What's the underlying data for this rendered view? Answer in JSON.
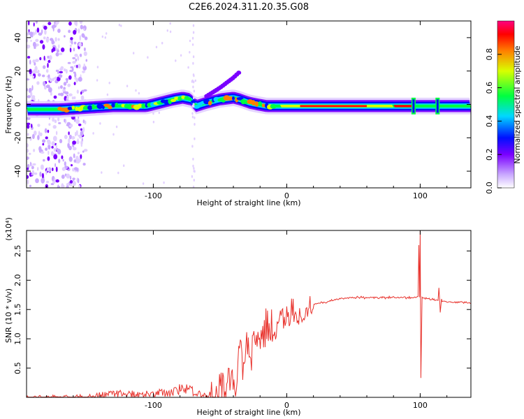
{
  "title": "C2E6.2024.311.20.35.G08",
  "chart_data": [
    {
      "type": "heatmap",
      "name": "spectrogram",
      "xlabel": "Height of straight line (km)",
      "ylabel": "Frequency (Hz)",
      "xlim": [
        -195,
        138
      ],
      "ylim": [
        -50,
        50
      ],
      "x_ticks": [
        -100,
        0,
        100
      ],
      "y_ticks": [
        -40,
        -20,
        0,
        20,
        40
      ],
      "colorbar": {
        "label": "Normalized spectral amplitude",
        "range": [
          0.0,
          1.0
        ],
        "ticks": [
          "0.0",
          "0.2",
          "0.4",
          "0.6",
          "0.8"
        ],
        "colors": [
          "#ffffff",
          "#c9a8ff",
          "#7a00ff",
          "#0010ff",
          "#00d8ff",
          "#00ff40",
          "#d8ff00",
          "#ff8000",
          "#ff0000",
          "#ff0080"
        ]
      },
      "ridge": {
        "x": [
          -195,
          -170,
          -150,
          -130,
          -115,
          -105,
          -95,
          -85,
          -78,
          -72,
          -68,
          -60,
          -50,
          -40,
          -35,
          -28,
          -22,
          -15,
          -5,
          0,
          10,
          20,
          40,
          60,
          80,
          90,
          95,
          100,
          110,
          120,
          138
        ],
        "y": [
          -3,
          -3,
          -2,
          -1,
          -1,
          -1,
          1,
          3,
          4,
          3,
          -1,
          1,
          3,
          4,
          3,
          1,
          0,
          -1,
          -1,
          -1,
          -1,
          -1,
          -1,
          -1,
          -1,
          -1,
          -1,
          -1,
          -1,
          -1,
          -1
        ]
      },
      "branch": {
        "x": [
          -60,
          -50,
          -45,
          -40,
          -36
        ],
        "y": [
          5,
          10,
          13,
          16,
          19
        ]
      },
      "spikes_x": [
        95,
        113
      ]
    },
    {
      "type": "line",
      "name": "snr",
      "xlabel": "Height of straight line (km)",
      "ylabel": "SNR (10 * v/v)",
      "y_multiplier": "(x10⁴)",
      "xlim": [
        -195,
        138
      ],
      "ylim": [
        0,
        2.85
      ],
      "x_ticks": [
        -100,
        0,
        100
      ],
      "y_ticks": [
        0.5,
        1.0,
        1.5,
        2.0,
        2.5
      ],
      "color": "#e8322c",
      "envelope": {
        "x": [
          -195,
          -150,
          -130,
          -100,
          -85,
          -75,
          -65,
          -55,
          -45,
          -40,
          -35,
          -30,
          -25,
          -20,
          -15,
          -10,
          -5,
          0,
          10,
          20,
          30,
          40,
          50,
          60,
          70,
          80,
          90,
          95,
          100,
          105,
          110,
          115,
          120,
          130,
          138
        ],
        "y": [
          0.03,
          0.04,
          0.12,
          0.1,
          0.2,
          0.25,
          0.12,
          0.05,
          0.3,
          0.5,
          0.8,
          0.9,
          1.0,
          1.2,
          1.3,
          1.35,
          1.4,
          1.42,
          1.5,
          1.6,
          1.65,
          1.7,
          1.72,
          1.72,
          1.72,
          1.72,
          1.72,
          1.72,
          1.72,
          1.7,
          1.68,
          1.66,
          1.65,
          1.64,
          1.63
        ]
      },
      "features": [
        {
          "x": 99,
          "y": 2.6
        },
        {
          "x": 100,
          "y": 2.85
        },
        {
          "x": 100.5,
          "y": 0.33
        },
        {
          "x": 114,
          "y": 1.87
        },
        {
          "x": 115,
          "y": 1.45
        },
        {
          "x": 116,
          "y": 1.68
        }
      ]
    }
  ]
}
